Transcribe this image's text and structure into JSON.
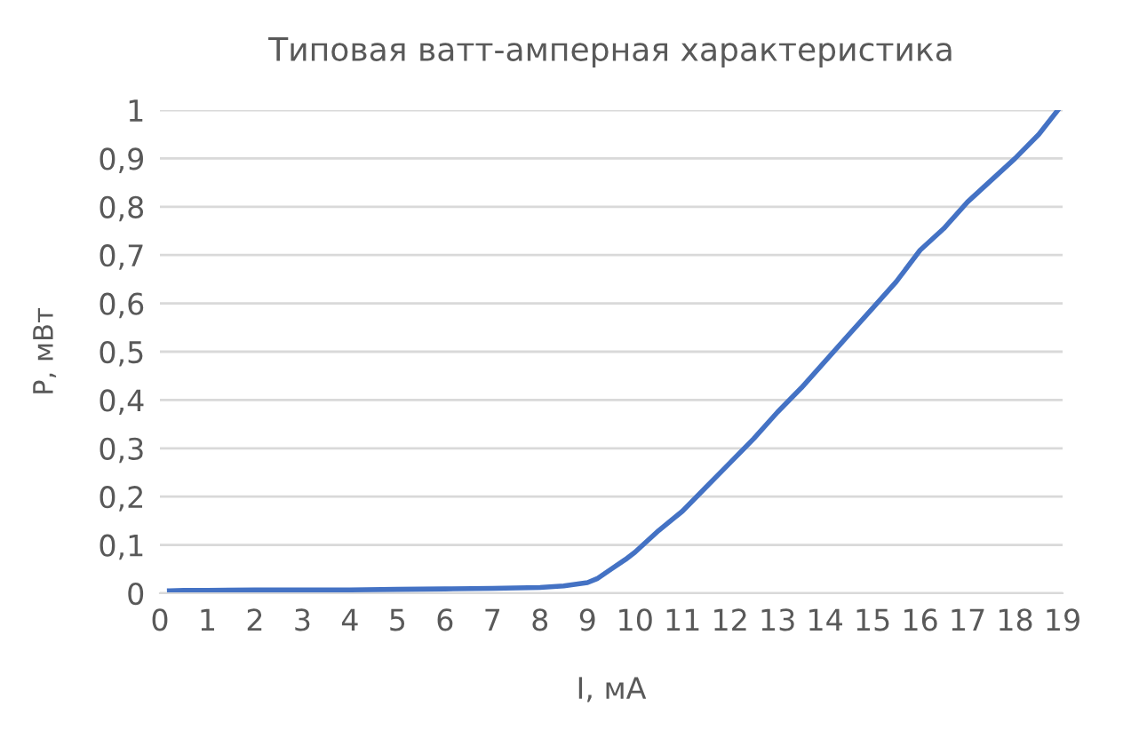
{
  "chart_data": {
    "type": "line",
    "title": "Типовая ватт-амперная характеристика",
    "xlabel": "I, мА",
    "ylabel": "P, мВт",
    "series": [
      {
        "color": "#4472c4",
        "x": [
          0.2,
          0.5,
          1,
          2,
          3,
          4,
          5,
          6,
          7,
          8,
          8.5,
          9,
          9.2,
          9.5,
          9.8,
          10,
          10.5,
          11,
          11.5,
          12,
          12.5,
          13,
          13.5,
          14,
          14.5,
          15,
          15.5,
          16,
          16.5,
          17,
          17.5,
          18,
          18.5,
          18.9
        ],
        "values": [
          0.005,
          0.006,
          0.006,
          0.007,
          0.007,
          0.007,
          0.008,
          0.009,
          0.01,
          0.012,
          0.015,
          0.022,
          0.03,
          0.05,
          0.07,
          0.085,
          0.13,
          0.17,
          0.22,
          0.27,
          0.32,
          0.375,
          0.425,
          0.48,
          0.535,
          0.59,
          0.645,
          0.71,
          0.755,
          0.81,
          0.855,
          0.9,
          0.95,
          1.0
        ]
      }
    ],
    "xlim": [
      0,
      19
    ],
    "xticks": [
      0,
      1,
      2,
      3,
      4,
      5,
      6,
      7,
      8,
      9,
      10,
      11,
      12,
      13,
      14,
      15,
      16,
      17,
      18,
      19
    ],
    "ylim": [
      0,
      1
    ],
    "yticks": [
      0,
      {
        "value": 0.1,
        "label": "0,1"
      },
      {
        "value": 0.2,
        "label": "0,2"
      },
      {
        "value": 0.3,
        "label": "0,3"
      },
      {
        "value": 0.4,
        "label": "0,4"
      },
      {
        "value": 0.5,
        "label": "0,5"
      },
      {
        "value": 0.6,
        "label": "0,6"
      },
      {
        "value": 0.7,
        "label": "0,7"
      },
      {
        "value": 0.8,
        "label": "0,8"
      },
      {
        "value": 0.9,
        "label": "0,9"
      },
      1
    ],
    "grid": "y",
    "line_style": "solid"
  }
}
